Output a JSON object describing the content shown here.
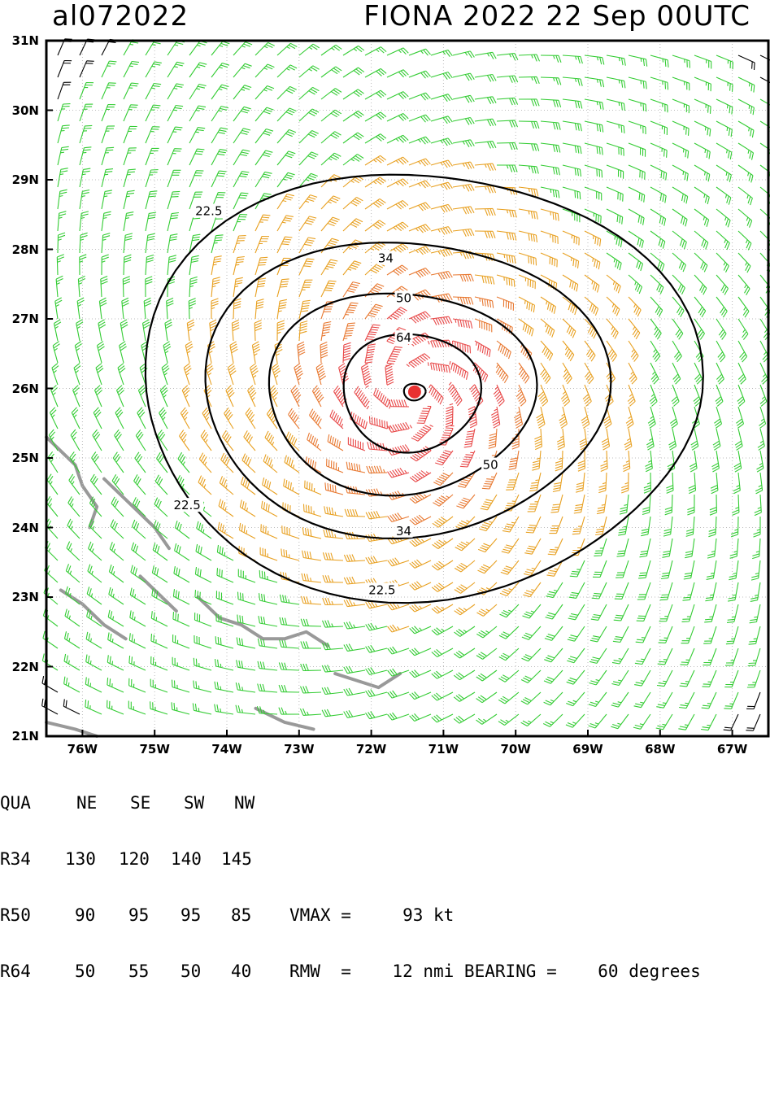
{
  "header": {
    "storm_id": "al072022",
    "title": "FIONA 2022 22 Sep 00UTC"
  },
  "colors": {
    "calm": "#000000",
    "ts": "#33cc33",
    "strong_ts": "#e8a020",
    "hurricane": "#e87830",
    "major": "#e84848",
    "center": "#e83030",
    "land": "#999999"
  },
  "chart_data": {
    "type": "wind-barbs",
    "xlim": [
      -76.5,
      -66.5
    ],
    "ylim": [
      21,
      31
    ],
    "x_tick_labels": [
      "76W",
      "75W",
      "74W",
      "73W",
      "72W",
      "71W",
      "70W",
      "69W",
      "68W",
      "67W"
    ],
    "x_ticks": [
      -76,
      -75,
      -74,
      -73,
      -72,
      -71,
      -70,
      -69,
      -68,
      -67
    ],
    "y_tick_labels": [
      "31N",
      "30N",
      "29N",
      "28N",
      "27N",
      "26N",
      "25N",
      "24N",
      "23N",
      "22N",
      "21N"
    ],
    "y_ticks": [
      31,
      30,
      29,
      28,
      27,
      26,
      25,
      24,
      23,
      22,
      21
    ],
    "center": {
      "lon": -71.4,
      "lat": 25.95
    },
    "contour_levels": [
      "22.5",
      "34",
      "50",
      "64"
    ],
    "contour_labels": [
      {
        "text": "22.5",
        "lon": -74.25,
        "lat": 28.55
      },
      {
        "text": "34",
        "lon": -71.8,
        "lat": 27.87
      },
      {
        "text": "50",
        "lon": -71.55,
        "lat": 27.3
      },
      {
        "text": "64",
        "lon": -71.55,
        "lat": 26.73
      },
      {
        "text": "50",
        "lon": -70.35,
        "lat": 24.9
      },
      {
        "text": "22.5",
        "lon": -74.55,
        "lat": 24.32
      },
      {
        "text": "34",
        "lon": -71.55,
        "lat": 23.95
      },
      {
        "text": "22.5",
        "lon": -71.85,
        "lat": 23.1
      }
    ],
    "grid": true
  },
  "table": {
    "header": [
      "QUA",
      "NE",
      "SE",
      "SW",
      "NW"
    ],
    "rows": [
      {
        "label": "R34",
        "values": [
          "130",
          "120",
          "140",
          "145"
        ],
        "extra": ""
      },
      {
        "label": "R50",
        "values": [
          "90",
          "95",
          "95",
          "85"
        ],
        "extra": "VMAX =     93 kt"
      },
      {
        "label": "R64",
        "values": [
          "50",
          "55",
          "50",
          "40"
        ],
        "extra": "RMW  =    12 nmi BEARING =    60 degrees"
      }
    ]
  }
}
